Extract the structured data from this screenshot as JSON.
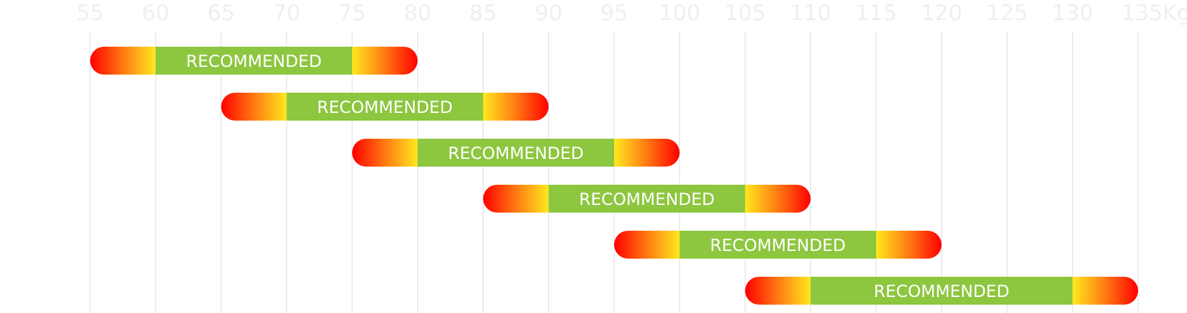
{
  "chart_data": {
    "type": "range-bar",
    "x_ticks": [
      55,
      60,
      65,
      70,
      75,
      80,
      85,
      90,
      95,
      100,
      105,
      110,
      115,
      120,
      125,
      130,
      135
    ],
    "x_unit": "Kg",
    "xlim": [
      55,
      135
    ],
    "grid": "vertical",
    "colors": {
      "recommended": "#8dc63f",
      "edge_inner": "#ffe81f",
      "edge_outer": "#ff0000",
      "grid": "#dddddd",
      "tick_text": "#efefef"
    },
    "series": [
      {
        "range": [
          55,
          80
        ],
        "recommended": [
          60,
          75
        ],
        "label": "RECOMMENDED"
      },
      {
        "range": [
          65,
          90
        ],
        "recommended": [
          70,
          85
        ],
        "label": "RECOMMENDED"
      },
      {
        "range": [
          75,
          100
        ],
        "recommended": [
          80,
          95
        ],
        "label": "RECOMMENDED"
      },
      {
        "range": [
          85,
          110
        ],
        "recommended": [
          90,
          105
        ],
        "label": "RECOMMENDED"
      },
      {
        "range": [
          95,
          120
        ],
        "recommended": [
          100,
          115
        ],
        "label": "RECOMMENDED"
      },
      {
        "range": [
          105,
          135
        ],
        "recommended": [
          110,
          130
        ],
        "label": "RECOMMENDED"
      }
    ]
  }
}
